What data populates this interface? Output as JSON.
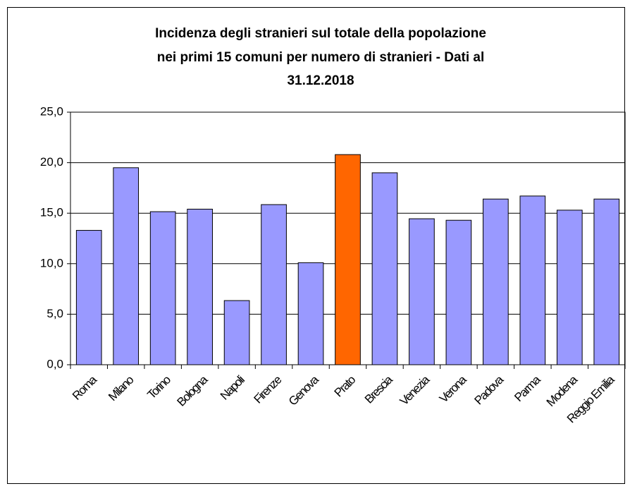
{
  "chart_data": {
    "type": "bar",
    "title": [
      "Incidenza degli stranieri sul totale della popolazione",
      "nei primi 15 comuni per numero di stranieri - Dati al",
      "31.12.2018"
    ],
    "categories": [
      "Roma",
      "Milano",
      "Torino",
      "Bologna",
      "Napoli",
      "Firenze",
      "Genova",
      "Prato",
      "Brescia",
      "Venezia",
      "Verona",
      "Padova",
      "Parma",
      "Modena",
      "Reggio Emilia"
    ],
    "values": [
      13.3,
      19.5,
      15.15,
      15.4,
      6.35,
      15.85,
      10.1,
      20.8,
      19.0,
      14.45,
      14.3,
      16.4,
      16.7,
      15.3,
      16.4
    ],
    "colors": [
      "#9999ff",
      "#9999ff",
      "#9999ff",
      "#9999ff",
      "#9999ff",
      "#9999ff",
      "#9999ff",
      "#ff6600",
      "#9999ff",
      "#9999ff",
      "#9999ff",
      "#9999ff",
      "#9999ff",
      "#9999ff",
      "#9999ff"
    ],
    "ylim": [
      0,
      25
    ],
    "yticks": [
      {
        "value": 0,
        "label": "0,0"
      },
      {
        "value": 5,
        "label": "5,0"
      },
      {
        "value": 10,
        "label": "10,0"
      },
      {
        "value": 15,
        "label": "15,0"
      },
      {
        "value": 20,
        "label": "20,0"
      },
      {
        "value": 25,
        "label": "25,0"
      }
    ],
    "grid": true
  }
}
